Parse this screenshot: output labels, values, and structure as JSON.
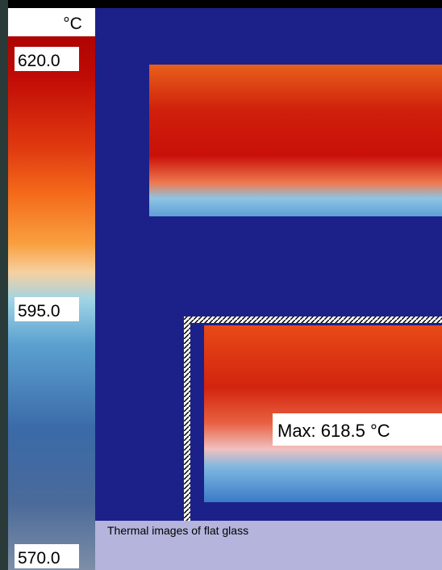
{
  "scale": {
    "unit": "°C",
    "labels": [
      "620.0",
      "595.0",
      "570.0"
    ]
  },
  "images": {
    "max_label": "Max:  618.5 °C"
  },
  "caption": "Thermal images of flat glass"
}
